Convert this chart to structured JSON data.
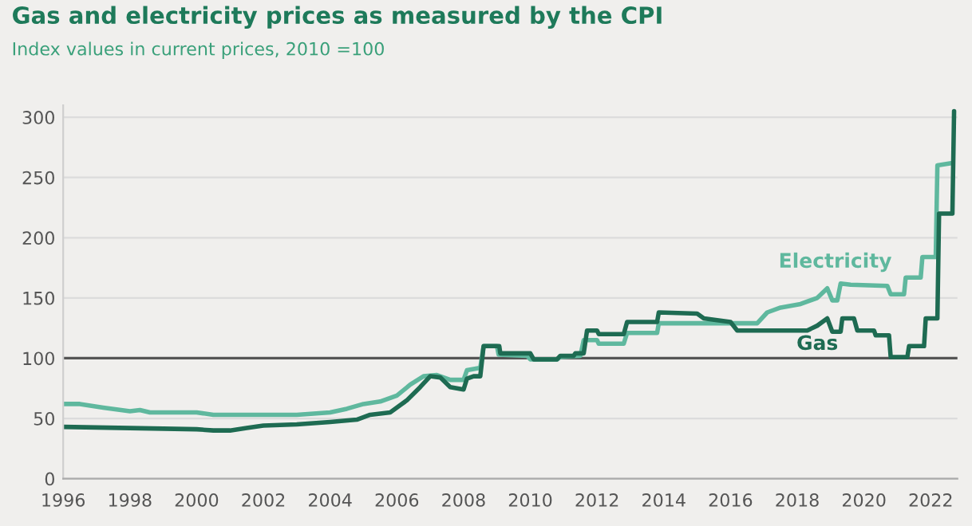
{
  "chart_data": {
    "type": "line",
    "title": "Gas and electricity prices as measured by the CPI",
    "subtitle": "Index values in current prices, 2010 =100",
    "series": [
      {
        "name": "Electricity",
        "color": "#5fb89e",
        "x": [
          1996,
          1996.5,
          1997.2,
          1998,
          1998.3,
          1998.6,
          2000,
          2000.5,
          2003,
          2004,
          2004.5,
          2005,
          2005.5,
          2006,
          2006.4,
          2006.8,
          2007.2,
          2007.6,
          2008,
          2008.1,
          2008.5,
          2008.6,
          2009.0,
          2009.05,
          2009.9,
          2010.0,
          2010.8,
          2010.9,
          2011.5,
          2011.6,
          2012.0,
          2012.05,
          2012.8,
          2012.9,
          2013.8,
          2013.85,
          2016.8,
          2017.1,
          2017.5,
          2018.1,
          2018.6,
          2018.9,
          2019.05,
          2019.2,
          2019.3,
          2019.6,
          2020.7,
          2020.8,
          2021.2,
          2021.25,
          2021.7,
          2021.75,
          2022.15,
          2022.2,
          2022.65
        ],
        "values": [
          62,
          62,
          59,
          56,
          57,
          55,
          55,
          53,
          53,
          55,
          58,
          62,
          64,
          69,
          78,
          85,
          86,
          82,
          82,
          90,
          92,
          110,
          110,
          103,
          102,
          99,
          99,
          101,
          102,
          115,
          115,
          112,
          112,
          121,
          121,
          129,
          129,
          138,
          142,
          145,
          150,
          158,
          148,
          148,
          162,
          161,
          160,
          153,
          153,
          167,
          167,
          184,
          184,
          260,
          262
        ]
      },
      {
        "name": "Gas",
        "color": "#1e6b52",
        "x": [
          1996,
          1998,
          2000,
          2000.5,
          2001,
          2001.5,
          2002,
          2003,
          2004,
          2004.8,
          2005.2,
          2005.8,
          2006.3,
          2006.7,
          2007,
          2007.3,
          2007.6,
          2008,
          2008.1,
          2008.3,
          2008.5,
          2008.6,
          2009.07,
          2009.1,
          2010.0,
          2010.1,
          2010.8,
          2010.9,
          2011.3,
          2011.35,
          2011.6,
          2011.7,
          2012.0,
          2012.05,
          2012.8,
          2012.9,
          2013.8,
          2013.85,
          2015.0,
          2015.2,
          2016.0,
          2016.2,
          2018.3,
          2018.6,
          2018.9,
          2019.05,
          2019.3,
          2019.35,
          2019.7,
          2019.8,
          2020.3,
          2020.35,
          2020.75,
          2020.8,
          2021.3,
          2021.35,
          2021.8,
          2021.85,
          2022.2,
          2022.25,
          2022.65,
          2022.7
        ],
        "values": [
          43,
          42,
          41,
          40,
          40,
          42,
          44,
          45,
          47,
          49,
          53,
          55,
          65,
          76,
          85,
          84,
          76,
          74,
          83,
          85,
          85,
          110,
          110,
          104,
          104,
          99,
          99,
          102,
          102,
          104,
          104,
          123,
          123,
          120,
          120,
          130,
          130,
          138,
          137,
          133,
          130,
          123,
          123,
          127,
          133,
          122,
          122,
          133,
          133,
          123,
          123,
          119,
          119,
          101,
          101,
          110,
          110,
          133,
          133,
          220,
          220,
          305
        ]
      }
    ],
    "xlim": [
      1996,
      2022.8
    ],
    "xticks": [
      1996,
      1998,
      2000,
      2002,
      2004,
      2006,
      2008,
      2010,
      2012,
      2014,
      2016,
      2018,
      2020,
      2022
    ],
    "ylim": [
      0,
      310
    ],
    "yticks": [
      0,
      50,
      100,
      150,
      200,
      250,
      300
    ],
    "ref_lines": [
      {
        "axis": "y",
        "value": 100,
        "color": "#555555"
      }
    ],
    "grid": "y",
    "legend": false
  }
}
